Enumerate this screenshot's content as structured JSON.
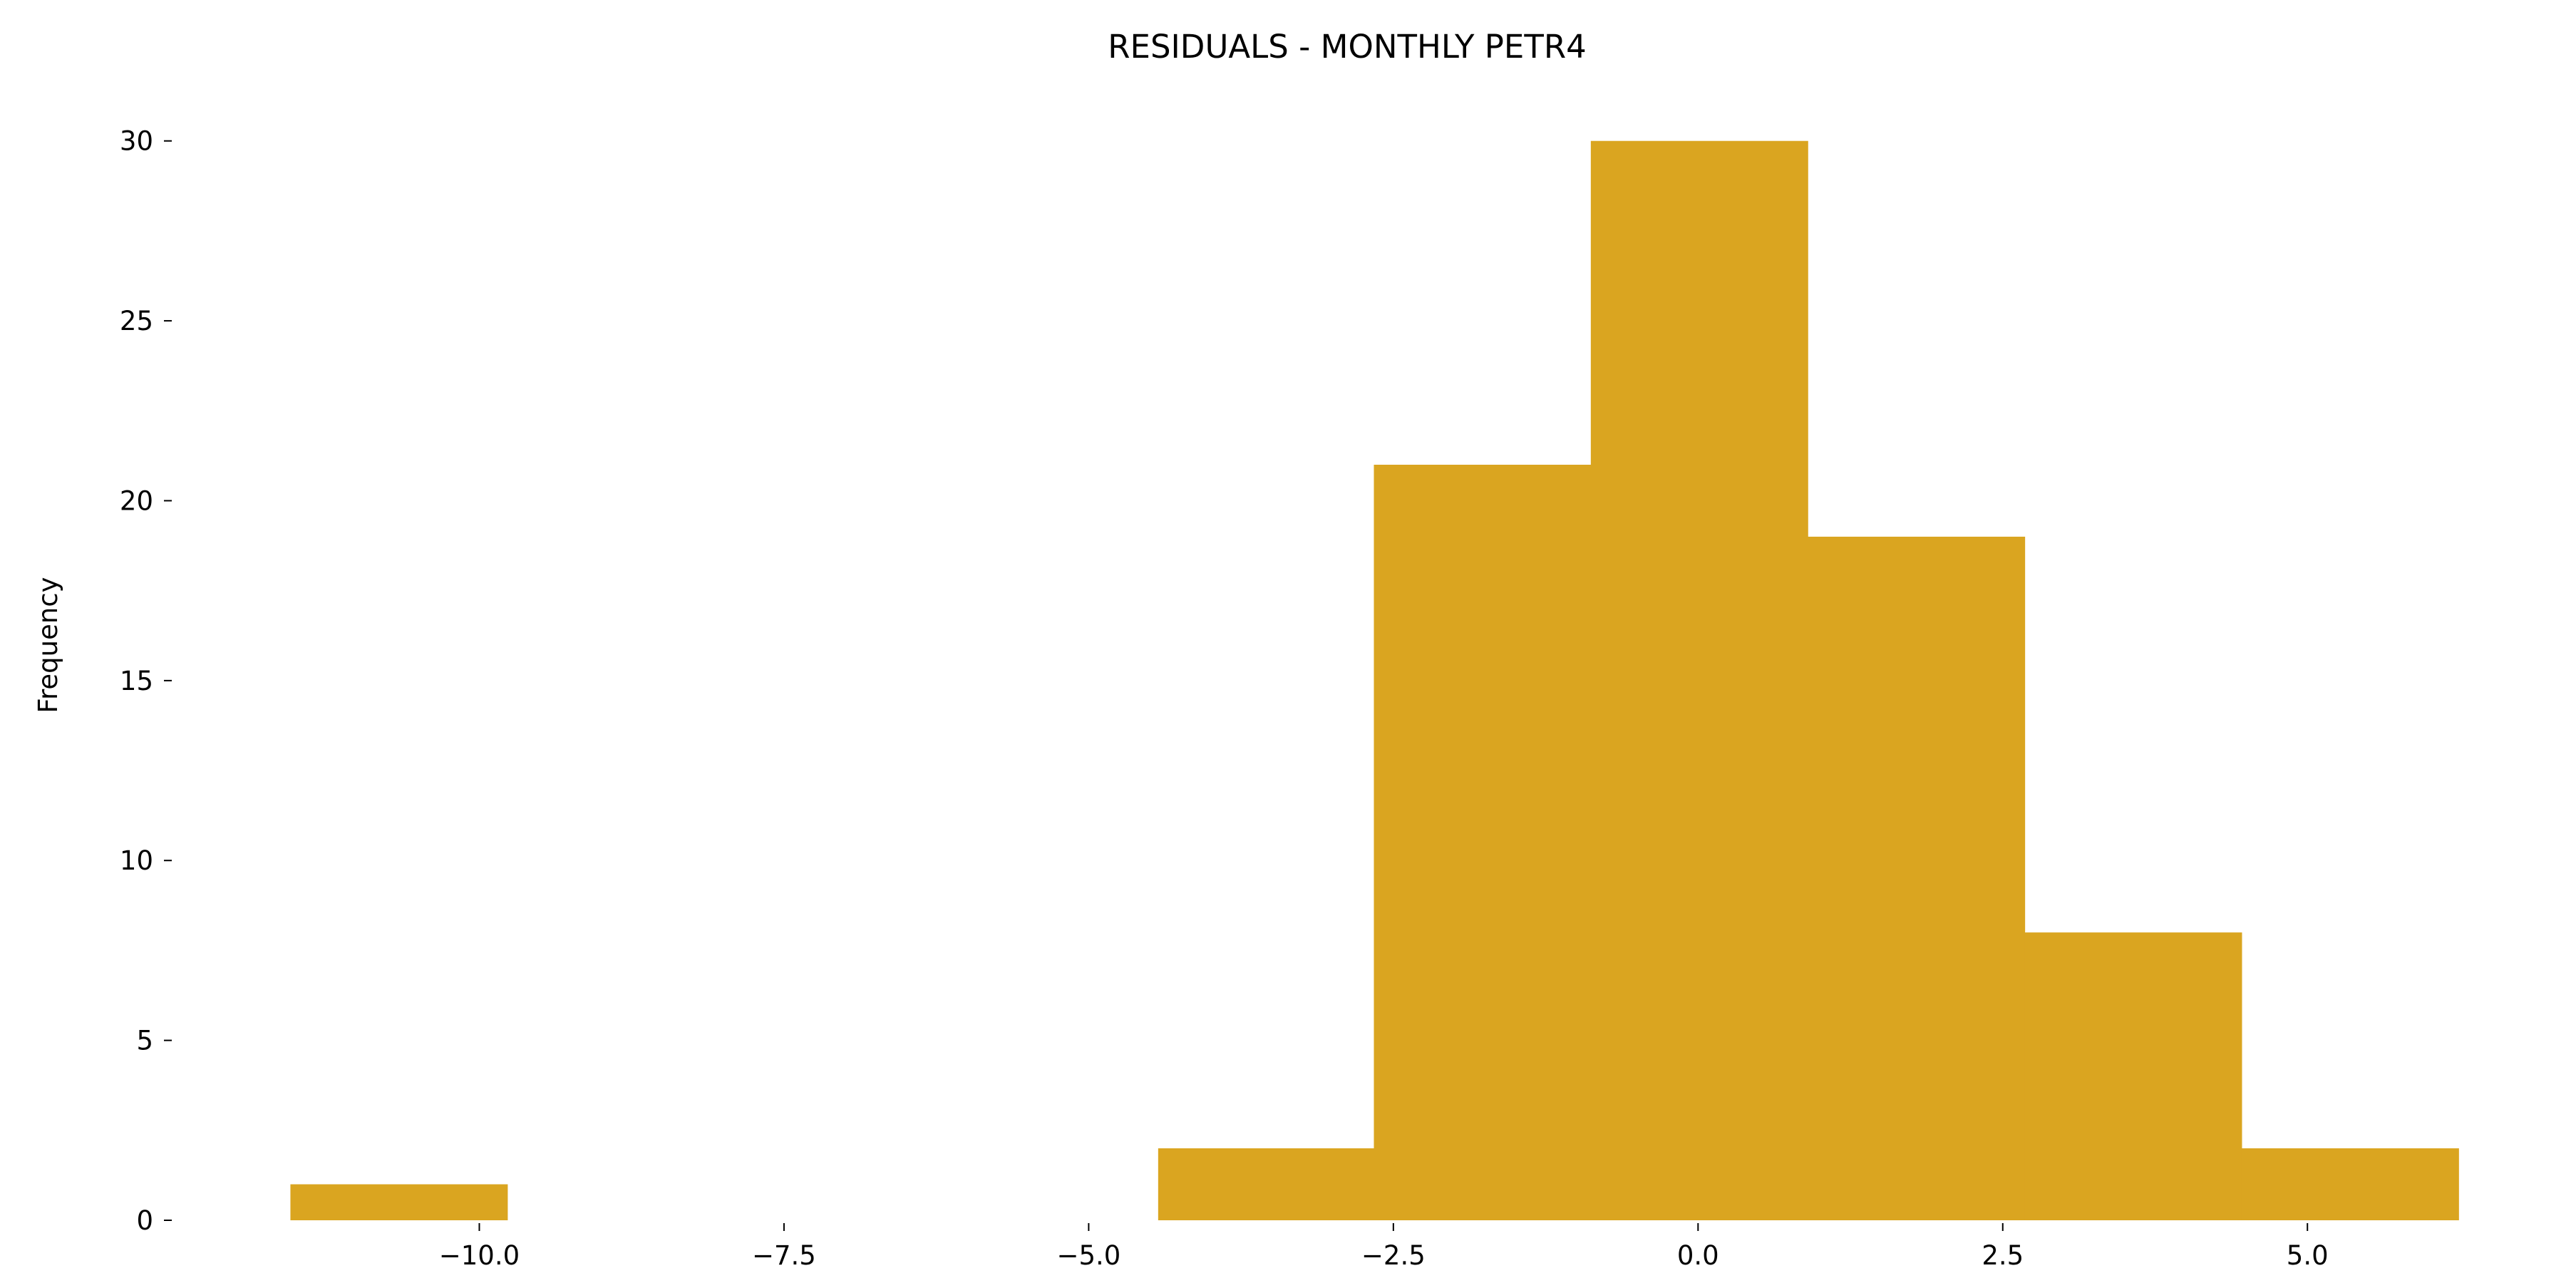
{
  "chart_data": {
    "type": "bar",
    "title": "RESIDUALS - MONTHLY PETR4",
    "xlabel": "",
    "ylabel": "Frequency",
    "bin_edges": [
      -11.55,
      -9.77,
      -7.99,
      -6.21,
      -4.43,
      -2.66,
      -0.88,
      0.9,
      2.68,
      4.46,
      6.24
    ],
    "values": [
      1,
      0,
      0,
      0,
      2,
      21,
      30,
      19,
      8,
      2
    ],
    "xlim": [
      -12.5,
      6.8
    ],
    "ylim": [
      0,
      31.5
    ],
    "x_ticks": [
      -10.0,
      -7.5,
      -5.0,
      -2.5,
      0.0,
      2.5,
      5.0
    ],
    "x_tick_labels": [
      "−10.0",
      "−7.5",
      "−5.0",
      "−2.5",
      "0.0",
      "2.5",
      "5.0"
    ],
    "y_ticks": [
      0,
      5,
      10,
      15,
      20,
      25,
      30
    ],
    "y_tick_labels": [
      "0",
      "5",
      "10",
      "15",
      "20",
      "25",
      "30"
    ],
    "bar_color": "#DAA520",
    "grid": false,
    "legend": "none"
  }
}
